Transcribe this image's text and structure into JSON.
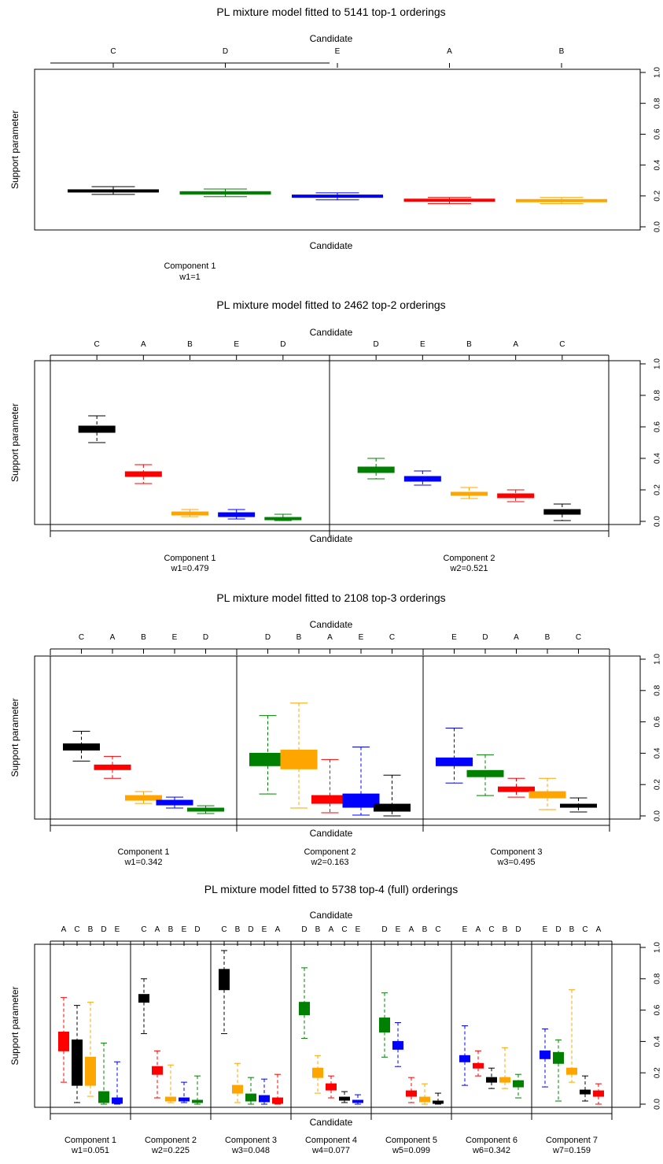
{
  "colors": {
    "black": "#000000",
    "red": "#ff0000",
    "green": "#008000",
    "blue": "#0000ff",
    "orange": "#ffa500"
  },
  "chart_data": [
    {
      "type": "boxplot",
      "title": "PL mixture model fitted to 5141 top-1 orderings",
      "xlabel": "Candidate",
      "ylabel": "Support parameter",
      "ylim": [
        0,
        1
      ],
      "y_ticks": [
        "0.0",
        "0.2",
        "0.4",
        "0.6",
        "0.8",
        "1.0"
      ],
      "components": [
        {
          "label": "Component 1",
          "weight": "w1=1",
          "boxes": [
            {
              "candidate": "C",
              "color": "black",
              "lower_whisker": 0.21,
              "q1": 0.225,
              "median": 0.233,
              "q3": 0.24,
              "upper_whisker": 0.26
            },
            {
              "candidate": "D",
              "color": "green",
              "lower_whisker": 0.195,
              "q1": 0.212,
              "median": 0.22,
              "q3": 0.228,
              "upper_whisker": 0.245
            },
            {
              "candidate": "E",
              "color": "blue",
              "lower_whisker": 0.175,
              "q1": 0.192,
              "median": 0.198,
              "q3": 0.205,
              "upper_whisker": 0.22
            },
            {
              "candidate": "A",
              "color": "red",
              "lower_whisker": 0.15,
              "q1": 0.166,
              "median": 0.172,
              "q3": 0.178,
              "upper_whisker": 0.19
            },
            {
              "candidate": "B",
              "color": "orange",
              "lower_whisker": 0.15,
              "q1": 0.163,
              "median": 0.17,
              "q3": 0.176,
              "upper_whisker": 0.19
            }
          ]
        }
      ]
    },
    {
      "type": "boxplot",
      "title": "PL mixture model fitted to 2462 top-2 orderings",
      "xlabel": "Candidate",
      "ylabel": "Support parameter",
      "ylim": [
        0,
        1
      ],
      "y_ticks": [
        "0.0",
        "0.2",
        "0.4",
        "0.6",
        "0.8",
        "1.0"
      ],
      "components": [
        {
          "label": "Component 1",
          "weight": "w1=0.479",
          "boxes": [
            {
              "candidate": "C",
              "color": "black",
              "lower_whisker": 0.5,
              "q1": 0.565,
              "median": 0.59,
              "q3": 0.605,
              "upper_whisker": 0.67
            },
            {
              "candidate": "A",
              "color": "red",
              "lower_whisker": 0.24,
              "q1": 0.285,
              "median": 0.3,
              "q3": 0.315,
              "upper_whisker": 0.36
            },
            {
              "candidate": "B",
              "color": "orange",
              "lower_whisker": 0.03,
              "q1": 0.04,
              "median": 0.05,
              "q3": 0.06,
              "upper_whisker": 0.075
            },
            {
              "candidate": "E",
              "color": "blue",
              "lower_whisker": 0.015,
              "q1": 0.03,
              "median": 0.04,
              "q3": 0.055,
              "upper_whisker": 0.075
            },
            {
              "candidate": "D",
              "color": "green",
              "lower_whisker": 0.005,
              "q1": 0.01,
              "median": 0.015,
              "q3": 0.025,
              "upper_whisker": 0.045
            }
          ]
        },
        {
          "label": "Component 2",
          "weight": "w2=0.521",
          "boxes": [
            {
              "candidate": "D",
              "color": "green",
              "lower_whisker": 0.27,
              "q1": 0.31,
              "median": 0.325,
              "q3": 0.345,
              "upper_whisker": 0.4
            },
            {
              "candidate": "E",
              "color": "blue",
              "lower_whisker": 0.23,
              "q1": 0.255,
              "median": 0.27,
              "q3": 0.285,
              "upper_whisker": 0.32
            },
            {
              "candidate": "B",
              "color": "orange",
              "lower_whisker": 0.145,
              "q1": 0.165,
              "median": 0.175,
              "q3": 0.185,
              "upper_whisker": 0.215
            },
            {
              "candidate": "A",
              "color": "red",
              "lower_whisker": 0.125,
              "q1": 0.15,
              "median": 0.16,
              "q3": 0.175,
              "upper_whisker": 0.2
            },
            {
              "candidate": "C",
              "color": "black",
              "lower_whisker": 0.005,
              "q1": 0.045,
              "median": 0.06,
              "q3": 0.075,
              "upper_whisker": 0.11
            }
          ]
        }
      ]
    },
    {
      "type": "boxplot",
      "title": "PL mixture model fitted to 2108 top-3 orderings",
      "xlabel": "Candidate",
      "ylabel": "Support parameter",
      "ylim": [
        0,
        1
      ],
      "y_ticks": [
        "0.0",
        "0.2",
        "0.4",
        "0.6",
        "0.8",
        "1.0"
      ],
      "components": [
        {
          "label": "Component 1",
          "weight": "w1=0.342",
          "boxes": [
            {
              "candidate": "C",
              "color": "black",
              "lower_whisker": 0.35,
              "q1": 0.42,
              "median": 0.44,
              "q3": 0.46,
              "upper_whisker": 0.54
            },
            {
              "candidate": "A",
              "color": "red",
              "lower_whisker": 0.24,
              "q1": 0.295,
              "median": 0.31,
              "q3": 0.325,
              "upper_whisker": 0.38
            },
            {
              "candidate": "B",
              "color": "orange",
              "lower_whisker": 0.08,
              "q1": 0.1,
              "median": 0.115,
              "q3": 0.13,
              "upper_whisker": 0.155
            },
            {
              "candidate": "E",
              "color": "blue",
              "lower_whisker": 0.05,
              "q1": 0.07,
              "median": 0.085,
              "q3": 0.1,
              "upper_whisker": 0.12
            },
            {
              "candidate": "D",
              "color": "green",
              "lower_whisker": 0.015,
              "q1": 0.03,
              "median": 0.04,
              "q3": 0.05,
              "upper_whisker": 0.065
            }
          ]
        },
        {
          "label": "Component 2",
          "weight": "w2=0.163",
          "boxes": [
            {
              "candidate": "D",
              "color": "green",
              "lower_whisker": 0.14,
              "q1": 0.32,
              "median": 0.36,
              "q3": 0.4,
              "upper_whisker": 0.64
            },
            {
              "candidate": "B",
              "color": "orange",
              "lower_whisker": 0.05,
              "q1": 0.3,
              "median": 0.35,
              "q3": 0.42,
              "upper_whisker": 0.72
            },
            {
              "candidate": "A",
              "color": "red",
              "lower_whisker": 0.02,
              "q1": 0.08,
              "median": 0.1,
              "q3": 0.13,
              "upper_whisker": 0.36
            },
            {
              "candidate": "E",
              "color": "blue",
              "lower_whisker": 0.005,
              "q1": 0.055,
              "median": 0.09,
              "q3": 0.14,
              "upper_whisker": 0.44
            },
            {
              "candidate": "C",
              "color": "black",
              "lower_whisker": 0.0,
              "q1": 0.03,
              "median": 0.05,
              "q3": 0.075,
              "upper_whisker": 0.26
            }
          ]
        },
        {
          "label": "Component 3",
          "weight": "w3=0.495",
          "boxes": [
            {
              "candidate": "E",
              "color": "blue",
              "lower_whisker": 0.21,
              "q1": 0.32,
              "median": 0.35,
              "q3": 0.37,
              "upper_whisker": 0.56
            },
            {
              "candidate": "D",
              "color": "green",
              "lower_whisker": 0.13,
              "q1": 0.25,
              "median": 0.27,
              "q3": 0.29,
              "upper_whisker": 0.39
            },
            {
              "candidate": "A",
              "color": "red",
              "lower_whisker": 0.12,
              "q1": 0.155,
              "median": 0.17,
              "q3": 0.185,
              "upper_whisker": 0.24
            },
            {
              "candidate": "B",
              "color": "orange",
              "lower_whisker": 0.04,
              "q1": 0.115,
              "median": 0.135,
              "q3": 0.155,
              "upper_whisker": 0.24
            },
            {
              "candidate": "C",
              "color": "black",
              "lower_whisker": 0.025,
              "q1": 0.055,
              "median": 0.065,
              "q3": 0.075,
              "upper_whisker": 0.115
            }
          ]
        }
      ]
    },
    {
      "type": "boxplot",
      "title": "PL mixture model fitted to 5738 top-4 (full) orderings",
      "xlabel": "Candidate",
      "ylabel": "Support parameter",
      "ylim": [
        0,
        1
      ],
      "y_ticks": [
        "0.0",
        "0.2",
        "0.4",
        "0.6",
        "0.8",
        "1.0"
      ],
      "components": [
        {
          "label": "Component 1",
          "weight": "w1=0.051",
          "boxes": [
            {
              "candidate": "A",
              "color": "red",
              "lower_whisker": 0.14,
              "q1": 0.34,
              "median": 0.4,
              "q3": 0.46,
              "upper_whisker": 0.68
            },
            {
              "candidate": "C",
              "color": "black",
              "lower_whisker": 0.01,
              "q1": 0.12,
              "median": 0.25,
              "q3": 0.41,
              "upper_whisker": 0.63
            },
            {
              "candidate": "B",
              "color": "orange",
              "lower_whisker": 0.05,
              "q1": 0.12,
              "median": 0.2,
              "q3": 0.3,
              "upper_whisker": 0.65
            },
            {
              "candidate": "D",
              "color": "green",
              "lower_whisker": 0.0,
              "q1": 0.01,
              "median": 0.04,
              "q3": 0.08,
              "upper_whisker": 0.39
            },
            {
              "candidate": "E",
              "color": "blue",
              "lower_whisker": 0.0,
              "q1": 0.005,
              "median": 0.02,
              "q3": 0.04,
              "upper_whisker": 0.27
            }
          ]
        },
        {
          "label": "Component 2",
          "weight": "w2=0.225",
          "boxes": [
            {
              "candidate": "C",
              "color": "black",
              "lower_whisker": 0.45,
              "q1": 0.65,
              "median": 0.68,
              "q3": 0.7,
              "upper_whisker": 0.8
            },
            {
              "candidate": "A",
              "color": "red",
              "lower_whisker": 0.04,
              "q1": 0.19,
              "median": 0.22,
              "q3": 0.24,
              "upper_whisker": 0.34
            },
            {
              "candidate": "B",
              "color": "orange",
              "lower_whisker": 0.01,
              "q1": 0.02,
              "median": 0.03,
              "q3": 0.045,
              "upper_whisker": 0.25
            },
            {
              "candidate": "E",
              "color": "blue",
              "lower_whisker": 0.01,
              "q1": 0.02,
              "median": 0.03,
              "q3": 0.04,
              "upper_whisker": 0.14
            },
            {
              "candidate": "D",
              "color": "green",
              "lower_whisker": 0.0,
              "q1": 0.01,
              "median": 0.015,
              "q3": 0.025,
              "upper_whisker": 0.18
            }
          ]
        },
        {
          "label": "Component 3",
          "weight": "w3=0.048",
          "boxes": [
            {
              "candidate": "C",
              "color": "black",
              "lower_whisker": 0.45,
              "q1": 0.73,
              "median": 0.8,
              "q3": 0.86,
              "upper_whisker": 0.98
            },
            {
              "candidate": "B",
              "color": "orange",
              "lower_whisker": 0.01,
              "q1": 0.07,
              "median": 0.1,
              "q3": 0.12,
              "upper_whisker": 0.26
            },
            {
              "candidate": "D",
              "color": "green",
              "lower_whisker": 0.0,
              "q1": 0.02,
              "median": 0.04,
              "q3": 0.065,
              "upper_whisker": 0.17
            },
            {
              "candidate": "E",
              "color": "blue",
              "lower_whisker": 0.0,
              "q1": 0.015,
              "median": 0.03,
              "q3": 0.055,
              "upper_whisker": 0.16
            },
            {
              "candidate": "A",
              "color": "red",
              "lower_whisker": 0.0,
              "q1": 0.005,
              "median": 0.02,
              "q3": 0.04,
              "upper_whisker": 0.19
            }
          ]
        },
        {
          "label": "Component 4",
          "weight": "w4=0.077",
          "boxes": [
            {
              "candidate": "D",
              "color": "green",
              "lower_whisker": 0.42,
              "q1": 0.57,
              "median": 0.61,
              "q3": 0.65,
              "upper_whisker": 0.87
            },
            {
              "candidate": "B",
              "color": "orange",
              "lower_whisker": 0.07,
              "q1": 0.17,
              "median": 0.2,
              "q3": 0.23,
              "upper_whisker": 0.31
            },
            {
              "candidate": "A",
              "color": "red",
              "lower_whisker": 0.04,
              "q1": 0.09,
              "median": 0.11,
              "q3": 0.13,
              "upper_whisker": 0.18
            },
            {
              "candidate": "C",
              "color": "black",
              "lower_whisker": 0.01,
              "q1": 0.025,
              "median": 0.035,
              "q3": 0.045,
              "upper_whisker": 0.08
            },
            {
              "candidate": "E",
              "color": "blue",
              "lower_whisker": 0.0,
              "q1": 0.01,
              "median": 0.015,
              "q3": 0.025,
              "upper_whisker": 0.06
            }
          ]
        },
        {
          "label": "Component 5",
          "weight": "w5=0.099",
          "boxes": [
            {
              "candidate": "D",
              "color": "green",
              "lower_whisker": 0.3,
              "q1": 0.46,
              "median": 0.5,
              "q3": 0.55,
              "upper_whisker": 0.71
            },
            {
              "candidate": "E",
              "color": "blue",
              "lower_whisker": 0.24,
              "q1": 0.35,
              "median": 0.38,
              "q3": 0.4,
              "upper_whisker": 0.52
            },
            {
              "candidate": "A",
              "color": "red",
              "lower_whisker": 0.01,
              "q1": 0.05,
              "median": 0.065,
              "q3": 0.085,
              "upper_whisker": 0.17
            },
            {
              "candidate": "B",
              "color": "orange",
              "lower_whisker": 0.0,
              "q1": 0.015,
              "median": 0.03,
              "q3": 0.045,
              "upper_whisker": 0.13
            },
            {
              "candidate": "C",
              "color": "black",
              "lower_whisker": 0.0,
              "q1": 0.005,
              "median": 0.01,
              "q3": 0.02,
              "upper_whisker": 0.07
            }
          ]
        },
        {
          "label": "Component 6",
          "weight": "w6=0.342",
          "boxes": [
            {
              "candidate": "E",
              "color": "blue",
              "lower_whisker": 0.12,
              "q1": 0.27,
              "median": 0.29,
              "q3": 0.31,
              "upper_whisker": 0.5
            },
            {
              "candidate": "A",
              "color": "red",
              "lower_whisker": 0.18,
              "q1": 0.23,
              "median": 0.245,
              "q3": 0.26,
              "upper_whisker": 0.34
            },
            {
              "candidate": "C",
              "color": "black",
              "lower_whisker": 0.1,
              "q1": 0.14,
              "median": 0.155,
              "q3": 0.17,
              "upper_whisker": 0.23
            },
            {
              "candidate": "B",
              "color": "orange",
              "lower_whisker": 0.1,
              "q1": 0.14,
              "median": 0.155,
              "q3": 0.17,
              "upper_whisker": 0.36
            },
            {
              "candidate": "D",
              "color": "green",
              "lower_whisker": 0.04,
              "q1": 0.11,
              "median": 0.13,
              "q3": 0.15,
              "upper_whisker": 0.19
            }
          ]
        },
        {
          "label": "Component 7",
          "weight": "w7=0.159",
          "boxes": [
            {
              "candidate": "E",
              "color": "blue",
              "lower_whisker": 0.11,
              "q1": 0.29,
              "median": 0.32,
              "q3": 0.34,
              "upper_whisker": 0.48
            },
            {
              "candidate": "D",
              "color": "green",
              "lower_whisker": 0.02,
              "q1": 0.26,
              "median": 0.3,
              "q3": 0.33,
              "upper_whisker": 0.41
            },
            {
              "candidate": "B",
              "color": "orange",
              "lower_whisker": 0.14,
              "q1": 0.19,
              "median": 0.21,
              "q3": 0.23,
              "upper_whisker": 0.73
            },
            {
              "candidate": "C",
              "color": "black",
              "lower_whisker": 0.02,
              "q1": 0.065,
              "median": 0.08,
              "q3": 0.09,
              "upper_whisker": 0.18
            },
            {
              "candidate": "A",
              "color": "red",
              "lower_whisker": 0.0,
              "q1": 0.05,
              "median": 0.065,
              "q3": 0.085,
              "upper_whisker": 0.13
            }
          ]
        }
      ]
    }
  ]
}
